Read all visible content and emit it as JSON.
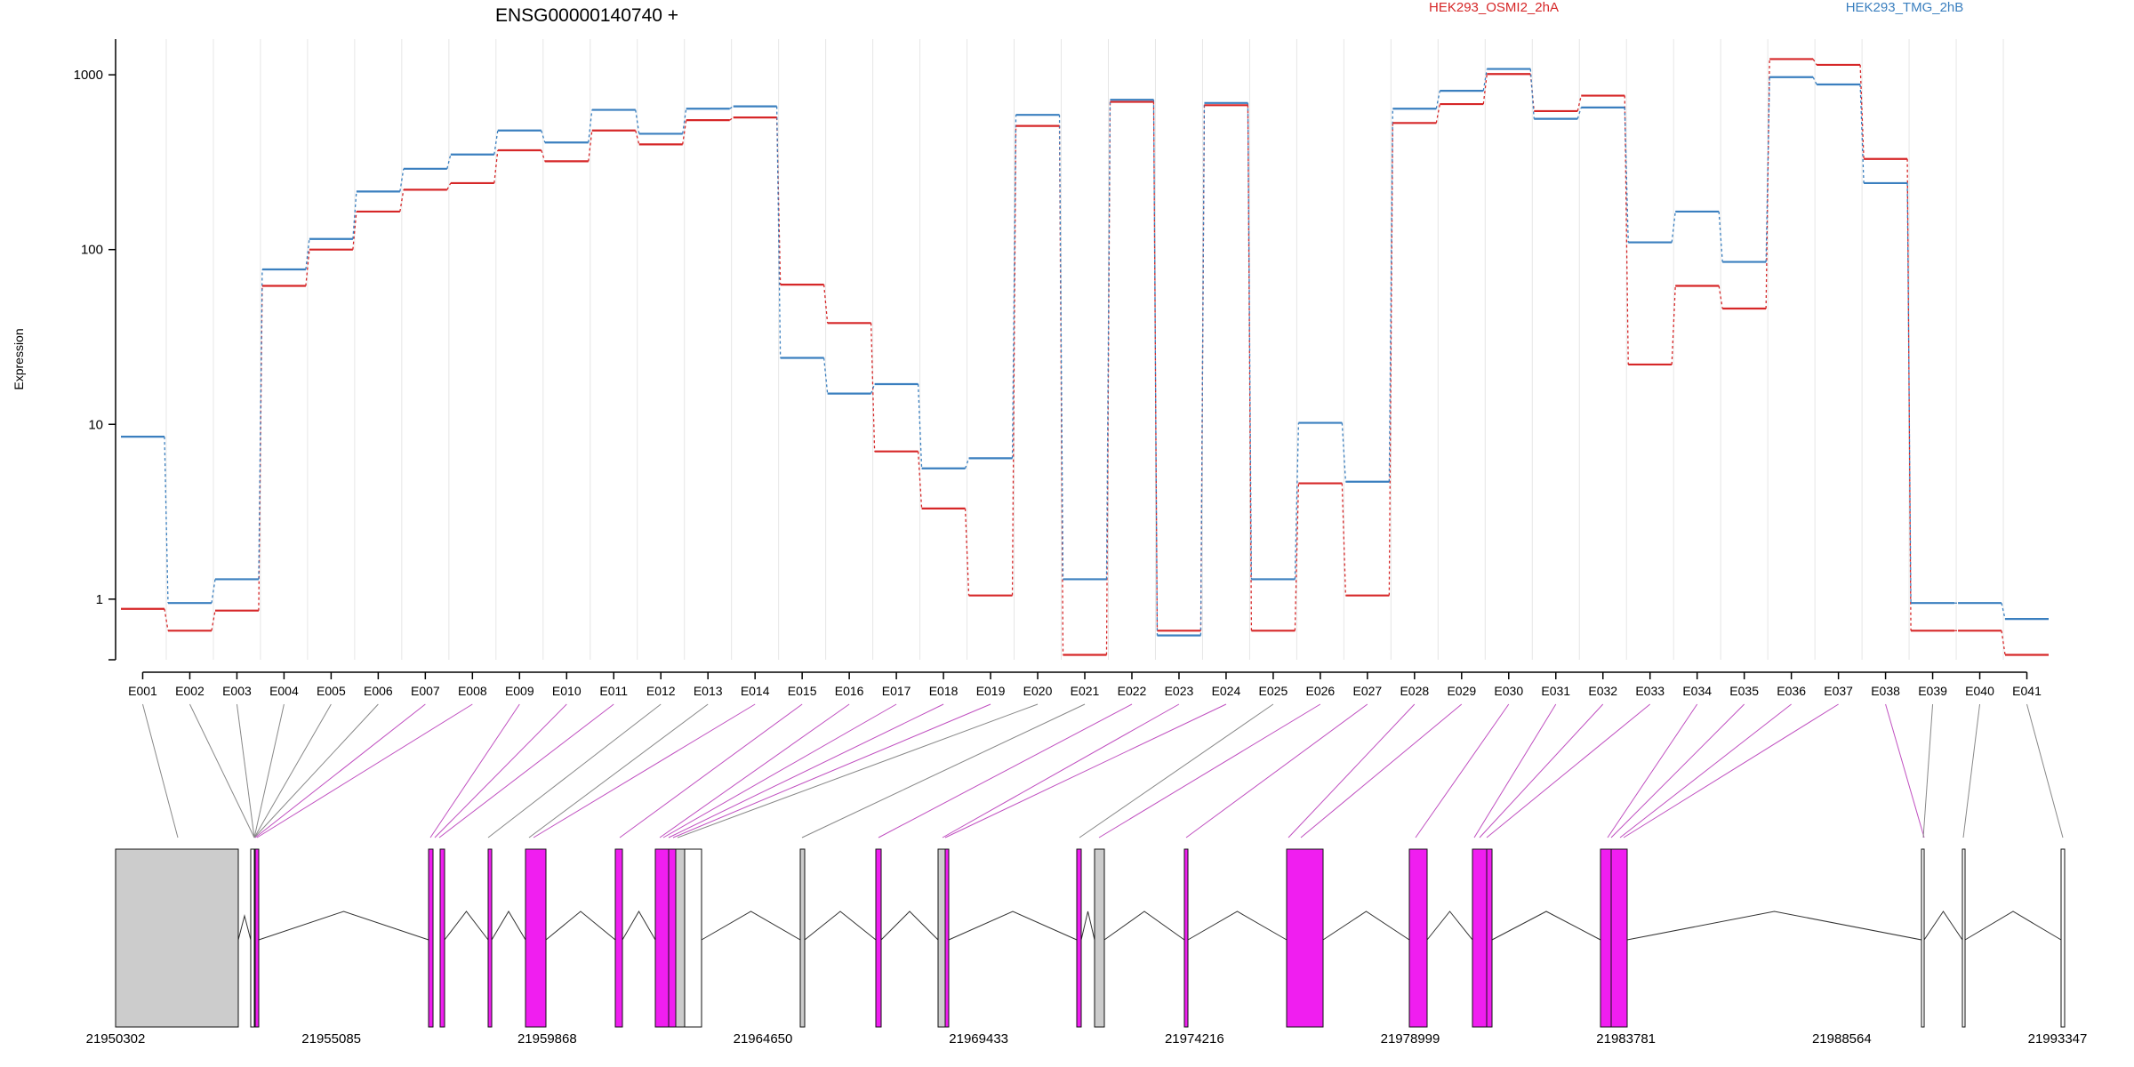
{
  "title": "ENSG00000140740 +",
  "ylabel": "Expression",
  "legend": [
    {
      "name": "HEK293_OSMI2_2hA",
      "color": "#d62728"
    },
    {
      "name": "HEK293_TMG_2hB",
      "color": "#3a7fbf"
    }
  ],
  "chart_data": {
    "type": "line",
    "yscale": "log",
    "ylim": [
      0.45,
      1600
    ],
    "yticks": [
      {
        "v": 1,
        "label": "1"
      },
      {
        "v": 10,
        "label": "10"
      },
      {
        "v": 100,
        "label": "100"
      },
      {
        "v": 1000,
        "label": "1000"
      }
    ],
    "categories": [
      "E001",
      "E002",
      "E003",
      "E004",
      "E005",
      "E006",
      "E007",
      "E008",
      "E009",
      "E010",
      "E011",
      "E012",
      "E013",
      "E014",
      "E015",
      "E016",
      "E017",
      "E018",
      "E019",
      "E020",
      "E021",
      "E022",
      "E023",
      "E024",
      "E025",
      "E026",
      "E027",
      "E028",
      "E029",
      "E030",
      "E031",
      "E032",
      "E033",
      "E034",
      "E035",
      "E036",
      "E037",
      "E038",
      "E039",
      "E040",
      "E041"
    ],
    "series": [
      {
        "name": "HEK293_OSMI2_2hA",
        "color": "#d62728",
        "values": [
          0.88,
          0.66,
          0.86,
          62,
          100,
          165,
          220,
          240,
          370,
          320,
          480,
          400,
          550,
          570,
          63,
          38,
          7.0,
          3.3,
          1.05,
          510,
          0.48,
          700,
          0.66,
          670,
          0.66,
          4.6,
          1.05,
          530,
          680,
          1010,
          620,
          760,
          22,
          62,
          46,
          1230,
          1140,
          330,
          0.66,
          0.66,
          0.48
        ]
      },
      {
        "name": "HEK293_TMG_2hB",
        "color": "#3a7fbf",
        "values": [
          8.5,
          0.95,
          1.3,
          77,
          115,
          215,
          290,
          350,
          480,
          410,
          630,
          460,
          640,
          660,
          24,
          15,
          17,
          5.6,
          6.4,
          590,
          1.3,
          720,
          0.62,
          690,
          1.3,
          10.2,
          4.7,
          640,
          810,
          1080,
          560,
          650,
          110,
          165,
          85,
          970,
          880,
          240,
          0.95,
          0.95,
          0.77
        ]
      }
    ]
  },
  "gene_model": {
    "coord_labels": [
      "21950302",
      "21955085",
      "21959868",
      "21964650",
      "21969433",
      "21974216",
      "21978999",
      "21983781",
      "21988564",
      "21993347"
    ],
    "coord_range": [
      21950302,
      21993347
    ],
    "exon_link_colors": [
      "grey",
      "grey",
      "grey",
      "grey",
      "grey",
      "grey",
      "magenta",
      "magenta",
      "magenta",
      "magenta",
      "magenta",
      "grey",
      "grey",
      "magenta",
      "magenta",
      "magenta",
      "magenta",
      "magenta",
      "magenta",
      "grey",
      "grey",
      "magenta",
      "magenta",
      "magenta",
      "grey",
      "magenta",
      "magenta",
      "magenta",
      "magenta",
      "magenta",
      "magenta",
      "magenta",
      "magenta",
      "magenta",
      "magenta",
      "magenta",
      "magenta",
      "magenta",
      "grey",
      "grey",
      "grey"
    ],
    "colors": {
      "magenta": "#f01ef0",
      "grey": "#cccccc",
      "white": "#ffffff"
    }
  }
}
